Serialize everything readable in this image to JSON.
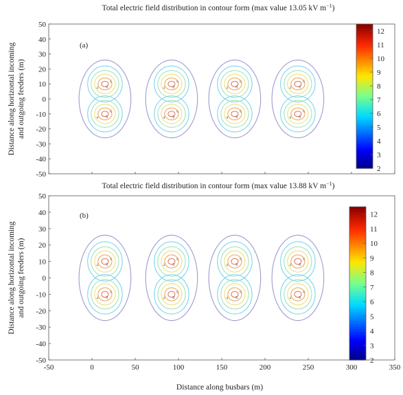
{
  "chart_data": [
    {
      "type": "contour",
      "panel_label": "(a)",
      "title": "Total electric field distribution in contour form (max value 13.05 kV m",
      "title_superscript": "−1",
      "title_suffix": ")",
      "xlabel": "Distance along busbars (m)",
      "ylabel_line1": "Distance along horizontal incoming",
      "ylabel_line2": "and outgoing feeders (m)",
      "xlim": [
        -50,
        350
      ],
      "ylim": [
        -50,
        50
      ],
      "xticks": [
        "-50",
        "0",
        "50",
        "100",
        "150",
        "200",
        "250",
        "300",
        "350"
      ],
      "yticks": [
        "50",
        "40",
        "30",
        "20",
        "10",
        "0",
        "-10",
        "-20",
        "-30",
        "-40",
        "-50"
      ],
      "colorbar": {
        "min": 2,
        "max": 12.5,
        "ticks": [
          "12",
          "11",
          "10",
          "9",
          "8",
          "7",
          "6",
          "5",
          "4",
          "3",
          "2"
        ]
      },
      "max_value": 13.05,
      "centers_x": [
        15,
        92,
        165,
        238
      ],
      "centers_y": [
        10,
        -10
      ],
      "contour_levels": [
        2,
        4,
        6,
        8,
        10,
        12
      ],
      "contour_labels": [
        "2",
        "4",
        "6",
        "8",
        "10",
        "12"
      ]
    },
    {
      "type": "contour",
      "panel_label": "(b)",
      "title": "Total electric field distribution in contour form (max value 13.88 kV m",
      "title_superscript": "−1",
      "title_suffix": ")",
      "xlabel": "Distance along busbars (m)",
      "ylabel_line1": "Distance along horizontal incoming",
      "ylabel_line2": "and outgoing feeders (m)",
      "xlim": [
        -50,
        350
      ],
      "ylim": [
        -50,
        50
      ],
      "xticks": [
        "-50",
        "0",
        "50",
        "100",
        "150",
        "200",
        "250",
        "300",
        "350"
      ],
      "yticks": [
        "50",
        "40",
        "30",
        "20",
        "10",
        "0",
        "-10",
        "-20",
        "-30",
        "-40",
        "-50"
      ],
      "colorbar": {
        "min": 2,
        "max": 12.5,
        "ticks": [
          "12",
          "11",
          "10",
          "9",
          "8",
          "7",
          "6",
          "5",
          "4",
          "3",
          "2"
        ]
      },
      "max_value": 13.88,
      "centers_x": [
        15,
        92,
        165,
        238
      ],
      "centers_y": [
        10,
        -10
      ],
      "contour_levels": [
        2,
        4,
        6,
        8,
        10,
        12
      ],
      "contour_labels": [
        "2",
        "4",
        "6",
        "8",
        "10",
        "12"
      ]
    }
  ],
  "colors": {
    "level_2": "#9b9bcf",
    "level_4": "#6fd0f0",
    "level_6": "#9be0b0",
    "level_8": "#e8e070",
    "level_10": "#f0a050",
    "level_12": "#e07050",
    "grid": "#d8d8d8",
    "frame": "#555555",
    "text": "#222222"
  }
}
